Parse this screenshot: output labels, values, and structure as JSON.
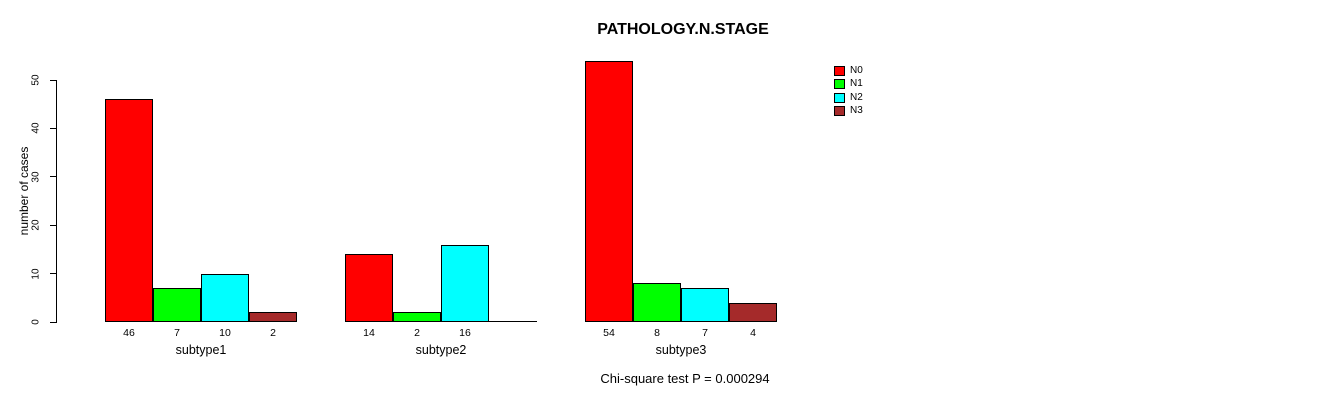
{
  "chart_data": {
    "type": "bar",
    "title": "PATHOLOGY.N.STAGE",
    "ylabel": "number of cases",
    "xlabel": "",
    "categories": [
      "subtype1",
      "subtype2",
      "subtype3"
    ],
    "series": [
      {
        "name": "N0",
        "color": "#FF0000",
        "values": [
          46,
          14,
          54
        ]
      },
      {
        "name": "N1",
        "color": "#00FF00",
        "values": [
          7,
          2,
          8
        ]
      },
      {
        "name": "N2",
        "color": "#00FFFF",
        "values": [
          10,
          16,
          7
        ]
      },
      {
        "name": "N3",
        "color": "#A52A2A",
        "values": [
          2,
          0,
          4
        ]
      }
    ],
    "yticks": [
      0,
      10,
      20,
      30,
      40,
      50
    ],
    "ylim": [
      0,
      50
    ],
    "grid": false,
    "legend_position": "right",
    "bar_value_labels_shown": true,
    "zero_value_label_hidden": true,
    "footer": "Chi-square test P = 0.000294"
  }
}
